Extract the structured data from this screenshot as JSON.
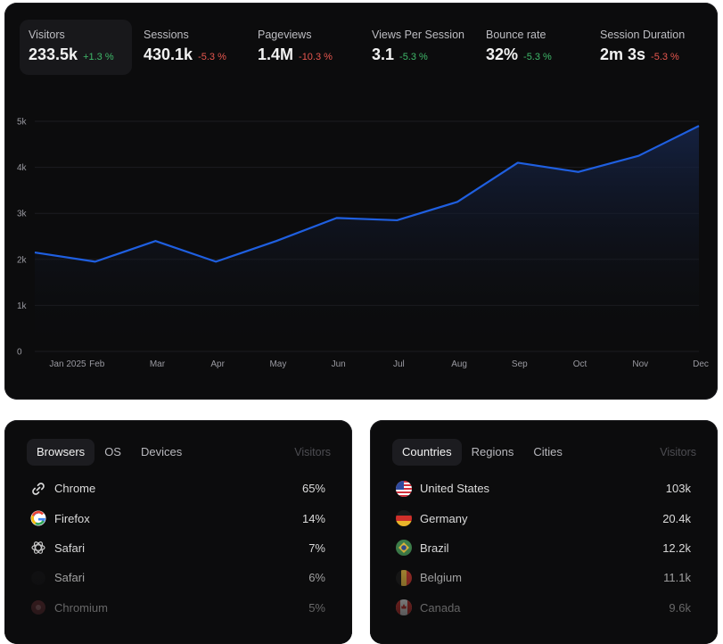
{
  "metrics": [
    {
      "label": "Visitors",
      "value": "233.5k",
      "delta": "+1.3 %",
      "trend": "pos"
    },
    {
      "label": "Sessions",
      "value": "430.1k",
      "delta": "-5.3 %",
      "trend": "neg"
    },
    {
      "label": "Pageviews",
      "value": "1.4M",
      "delta": "-10.3 %",
      "trend": "neg"
    },
    {
      "label": "Views Per Session",
      "value": "3.1",
      "delta": "-5.3 %",
      "trend": "pos"
    },
    {
      "label": "Bounce rate",
      "value": "32%",
      "delta": "-5.3 %",
      "trend": "pos"
    },
    {
      "label": "Session Duration",
      "value": "2m 3s",
      "delta": "-5.3 %",
      "trend": "neg"
    }
  ],
  "chart_data": {
    "type": "area",
    "x": [
      "Jan 2025",
      "Feb",
      "Mar",
      "Apr",
      "May",
      "Jun",
      "Jul",
      "Aug",
      "Sep",
      "Oct",
      "Nov",
      "Dec"
    ],
    "series": [
      {
        "values": [
          2150,
          1950,
          2400,
          1950,
          2400,
          2900,
          2850,
          3250,
          4100,
          3900,
          4250,
          4900
        ]
      }
    ],
    "ylim": [
      0,
      5000
    ],
    "yticks": [
      "0",
      "1k",
      "2k",
      "3k",
      "4k",
      "5k"
    ],
    "grid": true,
    "line_color": "#1f5fe0"
  },
  "browsers": {
    "tabs": [
      "Browsers",
      "OS",
      "Devices"
    ],
    "col_head": "Visitors",
    "items": [
      {
        "name": "Chrome",
        "value": "65%",
        "icon": "chrome-icon"
      },
      {
        "name": "Firefox",
        "value": "14%",
        "icon": "firefox-icon"
      },
      {
        "name": "Safari",
        "value": "7%",
        "icon": "safari-icon"
      },
      {
        "name": "Safari",
        "value": "6%",
        "icon": "safari-icon"
      },
      {
        "name": "Chromium",
        "value": "5%",
        "icon": "chromium-icon"
      }
    ]
  },
  "countries": {
    "tabs": [
      "Countries",
      "Regions",
      "Cities"
    ],
    "col_head": "Visitors",
    "items": [
      {
        "name": "United States",
        "value": "103k",
        "icon": "us-flag-icon"
      },
      {
        "name": "Germany",
        "value": "20.4k",
        "icon": "germany-flag-icon"
      },
      {
        "name": "Brazil",
        "value": "12.2k",
        "icon": "brazil-flag-icon"
      },
      {
        "name": "Belgium",
        "value": "11.1k",
        "icon": "belgium-flag-icon"
      },
      {
        "name": "Canada",
        "value": "9.6k",
        "icon": "canada-flag-icon"
      }
    ]
  }
}
